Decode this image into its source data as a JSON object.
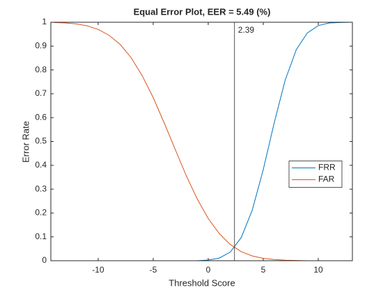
{
  "chart_data": {
    "type": "line",
    "title": "Equal Error Plot, EER = 5.49 (%)",
    "xlabel": "Threshold Score",
    "ylabel": "Error Rate",
    "x": [
      -14,
      -13,
      -12,
      -11,
      -10,
      -9,
      -8,
      -7,
      -6,
      -5,
      -4,
      -3,
      -2,
      -1,
      0,
      1,
      2,
      3,
      4,
      5,
      6,
      7,
      8,
      9,
      10,
      11,
      12,
      13
    ],
    "series": [
      {
        "name": "FRR",
        "color": "#0072bd",
        "values": [
          0,
          0,
          0,
          0,
          0,
          0,
          0,
          0,
          0,
          0,
          0,
          0,
          0,
          0,
          0.003,
          0.011,
          0.036,
          0.097,
          0.212,
          0.382,
          0.579,
          0.758,
          0.885,
          0.955,
          0.986,
          0.997,
          0.999,
          1
        ]
      },
      {
        "name": "FAR",
        "color": "#d95319",
        "values": [
          0.999,
          0.997,
          0.993,
          0.985,
          0.97,
          0.945,
          0.907,
          0.851,
          0.776,
          0.684,
          0.578,
          0.467,
          0.357,
          0.259,
          0.177,
          0.114,
          0.068,
          0.038,
          0.02,
          0.01,
          0.005,
          0.002,
          0.001,
          0,
          0,
          0,
          0,
          0
        ]
      }
    ],
    "eer_threshold": 2.39,
    "xlim": [
      -14.3,
      13.1
    ],
    "ylim": [
      0,
      1
    ],
    "xticks": [
      -10,
      -5,
      0,
      5,
      10
    ],
    "yticks": [
      0,
      0.1,
      0.2,
      0.3,
      0.4,
      0.5,
      0.6,
      0.7,
      0.8,
      0.9,
      1
    ],
    "legend": "east"
  }
}
